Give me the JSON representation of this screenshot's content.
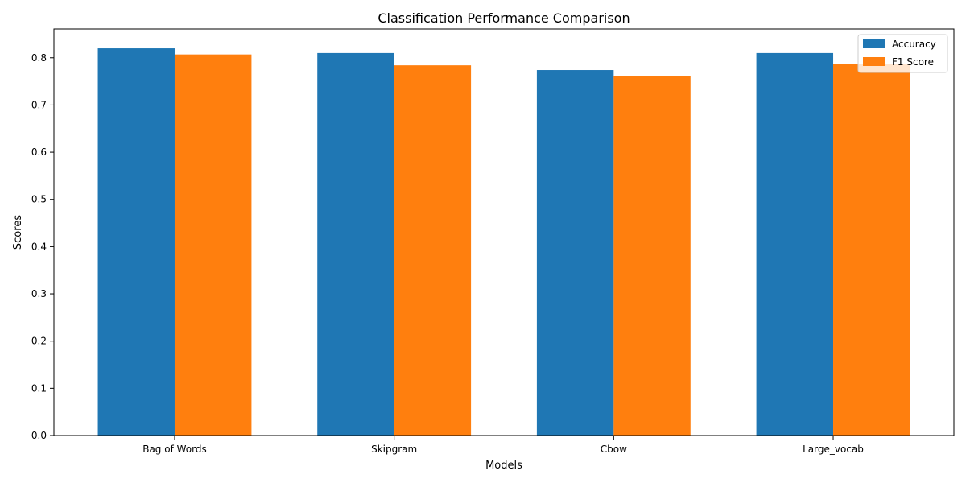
{
  "chart_data": {
    "type": "bar",
    "title": "Classification Performance Comparison",
    "xlabel": "Models",
    "ylabel": "Scores",
    "categories": [
      "Bag of Words",
      "Skipgram",
      "Cbow",
      "Large_vocab"
    ],
    "series": [
      {
        "name": "Accuracy",
        "color": "#1f77b4",
        "values": [
          0.82,
          0.81,
          0.774,
          0.81
        ]
      },
      {
        "name": "F1 Score",
        "color": "#ff7f0e",
        "values": [
          0.807,
          0.784,
          0.761,
          0.787
        ]
      }
    ],
    "ylim": [
      0,
      0.861
    ],
    "yticks": [
      0.0,
      0.1,
      0.2,
      0.3,
      0.4,
      0.5,
      0.6,
      0.7,
      0.8
    ],
    "ytick_labels": [
      "0.0",
      "0.1",
      "0.2",
      "0.3",
      "0.4",
      "0.5",
      "0.6",
      "0.7",
      "0.8"
    ],
    "grid": false,
    "legend_position": "top-right"
  }
}
